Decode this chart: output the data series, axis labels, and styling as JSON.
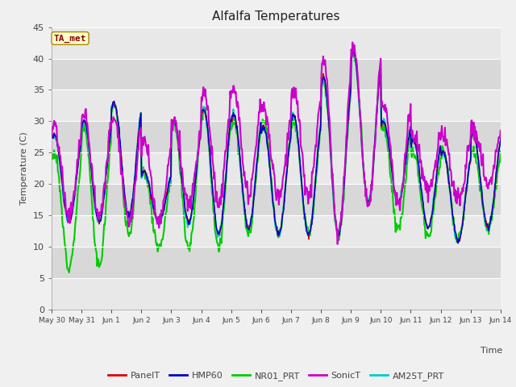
{
  "title": "Alfalfa Temperatures",
  "ylabel": "Temperature (C)",
  "xlabel": "Time",
  "ylim": [
    0,
    45
  ],
  "background_color": "#f0f0f0",
  "plot_bg_light": "#e8e8e8",
  "plot_bg_dark": "#d8d8d8",
  "annotation_text": "TA_met",
  "annotation_color": "#8b0000",
  "annotation_bg": "#ffffcc",
  "series": {
    "PanelT": {
      "color": "#dd0000",
      "lw": 1.0
    },
    "HMP60": {
      "color": "#0000cc",
      "lw": 1.0
    },
    "NR01_PRT": {
      "color": "#00cc00",
      "lw": 1.5
    },
    "SonicT": {
      "color": "#cc00cc",
      "lw": 1.5
    },
    "AM25T_PRT": {
      "color": "#00cccc",
      "lw": 1.5
    }
  },
  "x_tick_labels": [
    "May 30",
    "May 31",
    "Jun 1",
    "Jun 2",
    "Jun 3",
    "Jun 4",
    "Jun 5",
    "Jun 6",
    "Jun 7",
    "Jun 8",
    "Jun 9",
    "Jun 10",
    "Jun 11",
    "Jun 12",
    "Jun 13",
    "Jun 14"
  ],
  "num_days": 15,
  "min_temps_shared": [
    14,
    14,
    15,
    14,
    14,
    12,
    13,
    12,
    12,
    12,
    17,
    17,
    13,
    11,
    13
  ],
  "max_temps_shared": [
    28,
    30,
    33,
    22,
    30,
    32,
    31,
    29,
    31,
    37,
    41,
    30,
    27,
    25,
    28
  ],
  "min_temps_green": [
    7,
    7,
    12,
    10,
    10,
    10,
    12,
    12,
    12,
    12,
    17,
    13,
    12,
    11,
    13
  ],
  "max_temps_green": [
    25,
    29,
    33,
    22,
    30,
    32,
    30,
    30,
    30,
    36,
    41,
    29,
    25,
    25,
    25
  ],
  "min_temps_sonic": [
    15,
    15,
    14,
    14,
    17,
    17,
    18,
    18,
    18,
    12,
    17,
    17,
    19,
    17,
    20
  ],
  "max_temps_sonic": [
    29,
    31,
    31,
    27,
    30,
    35,
    35,
    32,
    35,
    40,
    42,
    33,
    28,
    28,
    29
  ]
}
